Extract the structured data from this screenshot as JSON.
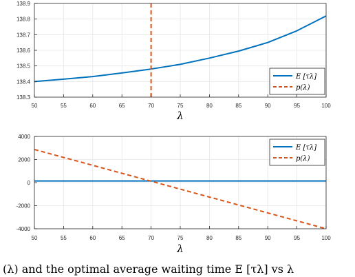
{
  "chart_data": [
    {
      "type": "line",
      "xlabel": "λ",
      "xlim": [
        50,
        100
      ],
      "ylim": [
        138.3,
        138.9
      ],
      "xticks": [
        "50",
        "55",
        "60",
        "65",
        "70",
        "75",
        "80",
        "85",
        "90",
        "95",
        "100"
      ],
      "yticks": [
        "138.3",
        "138.4",
        "138.5",
        "138.6",
        "138.7",
        "138.8",
        "138.9"
      ],
      "grid": true,
      "legend_position": "bottom-right",
      "series": [
        {
          "name": "E [τλ]",
          "color": "#0072BD",
          "style": "solid",
          "x": [
            50,
            55,
            60,
            65,
            70,
            75,
            80,
            85,
            90,
            95,
            100
          ],
          "y": [
            138.4,
            138.415,
            138.432,
            138.455,
            138.48,
            138.51,
            138.55,
            138.595,
            138.65,
            138.725,
            138.82
          ]
        },
        {
          "name": "p(λ)",
          "color": "#D95319",
          "style": "dashed",
          "x": [
            70,
            70
          ],
          "y": [
            138.3,
            138.9
          ]
        }
      ]
    },
    {
      "type": "line",
      "xlabel": "λ",
      "xlim": [
        50,
        100
      ],
      "ylim": [
        -4000,
        4000
      ],
      "xticks": [
        "50",
        "55",
        "60",
        "65",
        "70",
        "75",
        "80",
        "85",
        "90",
        "95",
        "100"
      ],
      "yticks": [
        "-4000",
        "-2000",
        "0",
        "2000",
        "4000"
      ],
      "grid": true,
      "legend_position": "top-right",
      "series": [
        {
          "name": "E [τλ]",
          "color": "#0072BD",
          "style": "solid",
          "x": [
            50,
            100
          ],
          "y": [
            138.5,
            138.5
          ]
        },
        {
          "name": "p(λ)",
          "color": "#D95319",
          "style": "dashed",
          "x": [
            50,
            100
          ],
          "y": [
            2870,
            -4000
          ]
        }
      ]
    }
  ],
  "caption": "(λ) and the optimal average waiting time E [τλ] vs λ"
}
